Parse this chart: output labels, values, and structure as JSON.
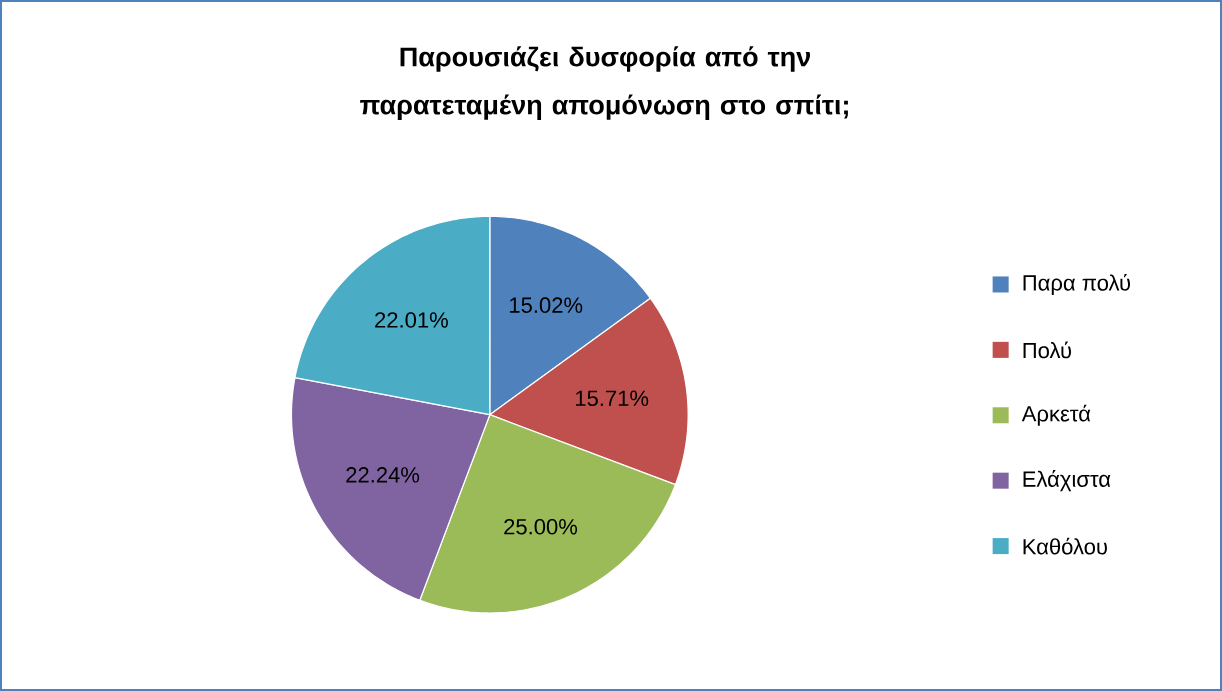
{
  "chart_data": {
    "type": "pie",
    "title": "Παρουσιάζει δυσφορία από την παρατεταμένη απομόνωση στο σπίτι;",
    "categories": [
      "Παρα πολύ",
      "Πολύ",
      "Αρκετά",
      "Ελάχιστα",
      "Καθόλου"
    ],
    "values": [
      15.02,
      15.71,
      25.0,
      22.24,
      22.01
    ],
    "colors": [
      "#4f81bd",
      "#c0504d",
      "#9bbb59",
      "#8064a2",
      "#4bacc6"
    ],
    "value_labels": [
      "15.02%",
      "15.71%",
      "25.00%",
      "22.24%",
      "22.01%"
    ],
    "legend": "right"
  }
}
